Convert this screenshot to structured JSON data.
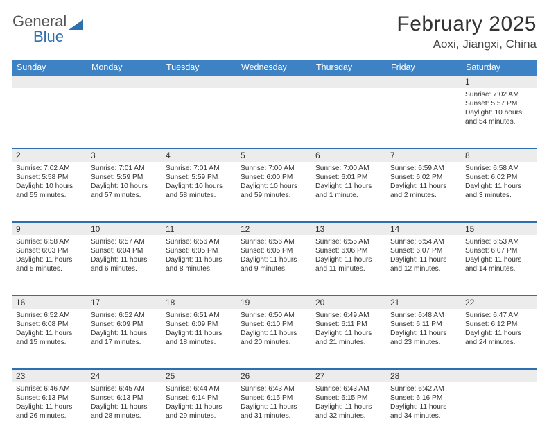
{
  "logo": {
    "general": "General",
    "blue": "Blue"
  },
  "title": "February 2025",
  "location": "Aoxi, Jiangxi, China",
  "colors": {
    "header_bar": "#3d82c4",
    "week_divider": "#2f6fb0",
    "daynum_bg": "#ececec",
    "logo_blue": "#2f6fb0"
  },
  "weekdays": [
    "Sunday",
    "Monday",
    "Tuesday",
    "Wednesday",
    "Thursday",
    "Friday",
    "Saturday"
  ],
  "days": [
    {
      "n": 1,
      "sunrise": "7:02 AM",
      "sunset": "5:57 PM",
      "daylight": "10 hours and 54 minutes."
    },
    {
      "n": 2,
      "sunrise": "7:02 AM",
      "sunset": "5:58 PM",
      "daylight": "10 hours and 55 minutes."
    },
    {
      "n": 3,
      "sunrise": "7:01 AM",
      "sunset": "5:59 PM",
      "daylight": "10 hours and 57 minutes."
    },
    {
      "n": 4,
      "sunrise": "7:01 AM",
      "sunset": "5:59 PM",
      "daylight": "10 hours and 58 minutes."
    },
    {
      "n": 5,
      "sunrise": "7:00 AM",
      "sunset": "6:00 PM",
      "daylight": "10 hours and 59 minutes."
    },
    {
      "n": 6,
      "sunrise": "7:00 AM",
      "sunset": "6:01 PM",
      "daylight": "11 hours and 1 minute."
    },
    {
      "n": 7,
      "sunrise": "6:59 AM",
      "sunset": "6:02 PM",
      "daylight": "11 hours and 2 minutes."
    },
    {
      "n": 8,
      "sunrise": "6:58 AM",
      "sunset": "6:02 PM",
      "daylight": "11 hours and 3 minutes."
    },
    {
      "n": 9,
      "sunrise": "6:58 AM",
      "sunset": "6:03 PM",
      "daylight": "11 hours and 5 minutes."
    },
    {
      "n": 10,
      "sunrise": "6:57 AM",
      "sunset": "6:04 PM",
      "daylight": "11 hours and 6 minutes."
    },
    {
      "n": 11,
      "sunrise": "6:56 AM",
      "sunset": "6:05 PM",
      "daylight": "11 hours and 8 minutes."
    },
    {
      "n": 12,
      "sunrise": "6:56 AM",
      "sunset": "6:05 PM",
      "daylight": "11 hours and 9 minutes."
    },
    {
      "n": 13,
      "sunrise": "6:55 AM",
      "sunset": "6:06 PM",
      "daylight": "11 hours and 11 minutes."
    },
    {
      "n": 14,
      "sunrise": "6:54 AM",
      "sunset": "6:07 PM",
      "daylight": "11 hours and 12 minutes."
    },
    {
      "n": 15,
      "sunrise": "6:53 AM",
      "sunset": "6:07 PM",
      "daylight": "11 hours and 14 minutes."
    },
    {
      "n": 16,
      "sunrise": "6:52 AM",
      "sunset": "6:08 PM",
      "daylight": "11 hours and 15 minutes."
    },
    {
      "n": 17,
      "sunrise": "6:52 AM",
      "sunset": "6:09 PM",
      "daylight": "11 hours and 17 minutes."
    },
    {
      "n": 18,
      "sunrise": "6:51 AM",
      "sunset": "6:09 PM",
      "daylight": "11 hours and 18 minutes."
    },
    {
      "n": 19,
      "sunrise": "6:50 AM",
      "sunset": "6:10 PM",
      "daylight": "11 hours and 20 minutes."
    },
    {
      "n": 20,
      "sunrise": "6:49 AM",
      "sunset": "6:11 PM",
      "daylight": "11 hours and 21 minutes."
    },
    {
      "n": 21,
      "sunrise": "6:48 AM",
      "sunset": "6:11 PM",
      "daylight": "11 hours and 23 minutes."
    },
    {
      "n": 22,
      "sunrise": "6:47 AM",
      "sunset": "6:12 PM",
      "daylight": "11 hours and 24 minutes."
    },
    {
      "n": 23,
      "sunrise": "6:46 AM",
      "sunset": "6:13 PM",
      "daylight": "11 hours and 26 minutes."
    },
    {
      "n": 24,
      "sunrise": "6:45 AM",
      "sunset": "6:13 PM",
      "daylight": "11 hours and 28 minutes."
    },
    {
      "n": 25,
      "sunrise": "6:44 AM",
      "sunset": "6:14 PM",
      "daylight": "11 hours and 29 minutes."
    },
    {
      "n": 26,
      "sunrise": "6:43 AM",
      "sunset": "6:15 PM",
      "daylight": "11 hours and 31 minutes."
    },
    {
      "n": 27,
      "sunrise": "6:43 AM",
      "sunset": "6:15 PM",
      "daylight": "11 hours and 32 minutes."
    },
    {
      "n": 28,
      "sunrise": "6:42 AM",
      "sunset": "6:16 PM",
      "daylight": "11 hours and 34 minutes."
    }
  ],
  "labels": {
    "sunrise": "Sunrise:",
    "sunset": "Sunset:",
    "daylight": "Daylight:"
  },
  "layout": {
    "first_day_column": 6,
    "weeks": 5
  }
}
